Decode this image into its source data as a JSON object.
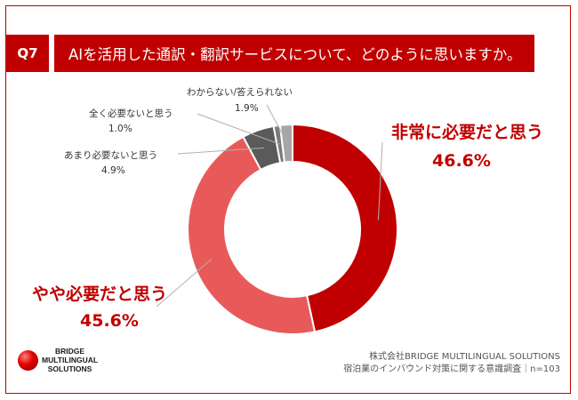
{
  "question": {
    "number": "Q7",
    "text": "AIを活用した通訳・翻訳サービスについて、どのように思いますか。"
  },
  "chart_data": {
    "type": "pie",
    "donut": true,
    "labels": [
      "非常に必要だと思う",
      "やや必要だと思う",
      "あまり必要ないと思う",
      "全く必要ないと思う",
      "わからない/答えられない"
    ],
    "values": [
      46.6,
      45.6,
      4.9,
      1.0,
      1.9
    ],
    "value_labels": [
      "46.6%",
      "45.6%",
      "4.9%",
      "1.0%",
      "1.9%"
    ],
    "colors": [
      "#c00000",
      "#e85a5a",
      "#5a5a5a",
      "#7a7a7a",
      "#a6a6a6"
    ]
  },
  "brand": {
    "logo_lines": [
      "BRIDGE",
      "MULTILINGUAL",
      "SOLUTIONS"
    ]
  },
  "footer": {
    "company": "株式会社BRIDGE MULTILINGUAL SOLUTIONS",
    "survey": "宿泊業のインバウンド対策に関する意識調査｜n=103"
  }
}
